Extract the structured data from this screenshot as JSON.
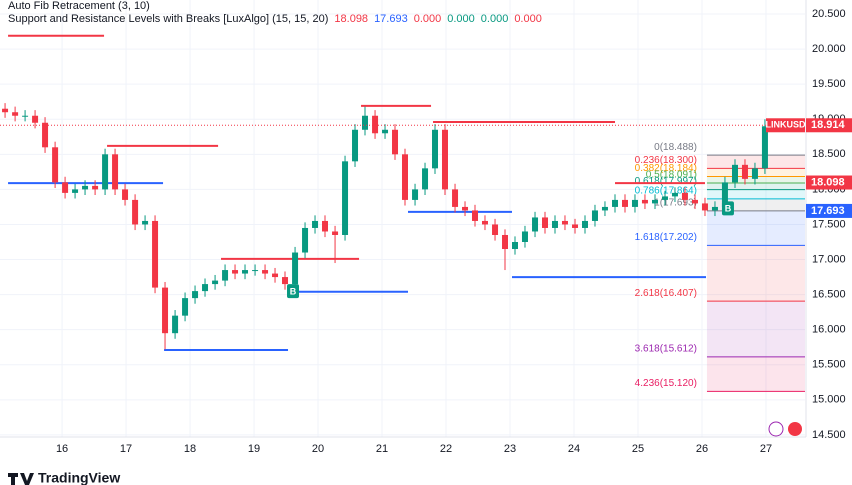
{
  "chart_data": {
    "type": "candlestick",
    "indicator_titles": [
      "Auto Fib Retracement (3, 10)",
      "Support and Resistance Levels with Breaks [LuxAlgo] (15, 15, 20)"
    ],
    "indicator_readout": [
      "18.098",
      "17.693",
      "0.000",
      "0.000",
      "0.000",
      "0.000"
    ],
    "indicator_readout_colors": [
      "#f23645",
      "#2962ff",
      "#f23645",
      "#089981",
      "#089981",
      "#f23645"
    ],
    "symbol": "LINKUSD",
    "last_price": 18.914,
    "price_tags": [
      {
        "value": 18.098,
        "color": "#f23645"
      },
      {
        "value": 17.693,
        "color": "#2962ff"
      }
    ],
    "up_color": "#089981",
    "down_color": "#f23645",
    "grid": true,
    "xlim": [
      15.03,
      27.61
    ],
    "xticks": [
      16,
      17,
      18,
      19,
      20,
      21,
      22,
      23,
      24,
      25,
      26,
      27
    ],
    "ylim": [
      14.47,
      20.7
    ],
    "yticks": [
      {
        "value": 14.5,
        "label": "14.500"
      },
      {
        "value": 15,
        "label": "15.000"
      },
      {
        "value": 15.5,
        "label": "15.500"
      },
      {
        "value": 16,
        "label": "16.000"
      },
      {
        "value": 16.5,
        "label": "16.500"
      },
      {
        "value": 17,
        "label": "17.000"
      },
      {
        "value": 17.5,
        "label": "17.500"
      },
      {
        "value": 18,
        "label": "18.000"
      },
      {
        "value": 18.5,
        "label": "18.500"
      },
      {
        "value": 19,
        "label": "19.000"
      },
      {
        "value": 19.5,
        "label": "19.500"
      },
      {
        "value": 20,
        "label": "20.000"
      },
      {
        "value": 20.5,
        "label": "20.500"
      }
    ],
    "x": [
      15.109,
      15.266,
      15.422,
      15.578,
      15.734,
      15.891,
      16.047,
      16.203,
      16.359,
      16.516,
      16.672,
      16.828,
      16.984,
      17.141,
      17.297,
      17.453,
      17.609,
      17.766,
      17.922,
      18.078,
      18.234,
      18.391,
      18.547,
      18.703,
      18.859,
      19.016,
      19.172,
      19.328,
      19.484,
      19.641,
      19.797,
      19.953,
      20.109,
      20.266,
      20.422,
      20.578,
      20.734,
      20.891,
      21.047,
      21.203,
      21.359,
      21.516,
      21.672,
      21.828,
      21.984,
      22.141,
      22.297,
      22.453,
      22.609,
      22.766,
      22.922,
      23.078,
      23.234,
      23.391,
      23.547,
      23.703,
      23.859,
      24.016,
      24.172,
      24.328,
      24.484,
      24.641,
      24.797,
      24.953,
      25.109,
      25.266,
      25.422,
      25.578,
      25.734,
      25.891,
      26.047,
      26.203,
      26.359,
      26.516,
      26.672,
      26.828,
      26.984
    ],
    "open": [
      19.15,
      19.1,
      19.05,
      19.05,
      18.95,
      18.6,
      18.1,
      17.95,
      18.0,
      18.05,
      18.0,
      18.5,
      18.0,
      17.85,
      17.5,
      17.55,
      16.6,
      15.95,
      16.2,
      16.45,
      16.55,
      16.65,
      16.7,
      16.85,
      16.8,
      16.85,
      16.85,
      16.8,
      16.75,
      16.65,
      17.1,
      17.45,
      17.55,
      17.4,
      17.35,
      18.4,
      18.85,
      19.05,
      18.8,
      18.85,
      18.5,
      17.85,
      18.0,
      18.3,
      18.85,
      18.0,
      17.75,
      17.7,
      17.55,
      17.5,
      17.35,
      17.15,
      17.25,
      17.4,
      17.6,
      17.45,
      17.55,
      17.5,
      17.45,
      17.55,
      17.7,
      17.75,
      17.85,
      17.75,
      17.85,
      17.8,
      17.85,
      17.9,
      17.95,
      17.85,
      17.8,
      17.7,
      17.75,
      18.1,
      18.35,
      18.15,
      18.3
    ],
    "high": [
      19.23,
      19.18,
      19.13,
      19.13,
      19.03,
      18.68,
      18.18,
      18.08,
      18.13,
      18.13,
      18.58,
      18.58,
      18.08,
      17.93,
      17.63,
      17.63,
      16.68,
      16.28,
      16.53,
      16.63,
      16.73,
      16.78,
      16.93,
      16.93,
      16.93,
      16.93,
      16.93,
      16.88,
      16.83,
      17.18,
      17.53,
      17.63,
      17.63,
      17.48,
      18.48,
      18.93,
      19.18,
      19.13,
      18.93,
      18.93,
      18.58,
      18.08,
      18.38,
      18.93,
      18.93,
      18.08,
      17.83,
      17.78,
      17.63,
      17.58,
      17.43,
      17.33,
      17.48,
      17.68,
      17.68,
      17.63,
      17.63,
      17.58,
      17.63,
      17.78,
      17.83,
      17.93,
      17.93,
      17.93,
      17.93,
      17.93,
      17.98,
      18.03,
      18.03,
      17.93,
      17.88,
      17.83,
      18.18,
      18.43,
      18.43,
      18.38,
      19.0
    ],
    "low": [
      19.02,
      18.97,
      18.97,
      18.87,
      18.52,
      18.02,
      17.87,
      17.87,
      17.92,
      17.92,
      17.92,
      17.92,
      17.77,
      17.42,
      17.42,
      16.52,
      15.72,
      15.87,
      16.12,
      16.37,
      16.47,
      16.57,
      16.62,
      16.72,
      16.72,
      16.77,
      16.72,
      16.67,
      16.57,
      16.57,
      17.02,
      17.37,
      17.32,
      16.95,
      17.27,
      18.32,
      18.77,
      18.72,
      18.72,
      18.42,
      17.77,
      17.77,
      17.92,
      18.22,
      17.92,
      17.67,
      17.62,
      17.47,
      17.42,
      17.27,
      16.85,
      17.07,
      17.17,
      17.32,
      17.37,
      17.37,
      17.42,
      17.37,
      17.37,
      17.47,
      17.62,
      17.67,
      17.67,
      17.67,
      17.72,
      17.72,
      17.77,
      17.82,
      17.77,
      17.72,
      17.62,
      17.62,
      17.67,
      18.02,
      18.07,
      18.07,
      18.22
    ],
    "close": [
      19.1,
      19.05,
      19.05,
      18.95,
      18.6,
      18.1,
      17.95,
      18.0,
      18.05,
      18.0,
      18.5,
      18.0,
      17.85,
      17.5,
      17.55,
      16.6,
      15.95,
      16.2,
      16.45,
      16.55,
      16.65,
      16.7,
      16.85,
      16.8,
      16.85,
      16.85,
      16.8,
      16.75,
      16.65,
      17.1,
      17.45,
      17.55,
      17.4,
      17.35,
      18.4,
      18.85,
      19.05,
      18.8,
      18.85,
      18.5,
      17.85,
      18.0,
      18.3,
      18.85,
      18.0,
      17.75,
      17.7,
      17.55,
      17.5,
      17.35,
      17.15,
      17.25,
      17.4,
      17.6,
      17.45,
      17.55,
      17.5,
      17.45,
      17.55,
      17.7,
      17.75,
      17.85,
      17.75,
      17.85,
      17.8,
      17.85,
      17.9,
      17.95,
      17.85,
      17.8,
      17.7,
      17.75,
      18.1,
      18.35,
      18.15,
      18.3,
      18.9
    ],
    "resistance_color": "#f23645",
    "support_color": "#2962ff",
    "resistance_lines": [
      {
        "price": 20.19,
        "x": [
          15.156,
          16.656
        ]
      },
      {
        "price": 18.62,
        "x": [
          16.703,
          18.438
        ]
      },
      {
        "price": 17.01,
        "x": [
          18.484,
          20.641
        ]
      },
      {
        "price": 19.19,
        "x": [
          20.672,
          21.766
        ]
      },
      {
        "price": 18.96,
        "x": [
          21.797,
          24.641
        ]
      },
      {
        "price": 18.09,
        "x": [
          24.641,
          26.047
        ]
      }
    ],
    "support_lines": [
      {
        "price": 18.09,
        "x": [
          15.156,
          17.578
        ]
      },
      {
        "price": 15.71,
        "x": [
          17.594,
          19.531
        ]
      },
      {
        "price": 16.54,
        "x": [
          19.594,
          21.406
        ]
      },
      {
        "price": 17.68,
        "x": [
          21.406,
          23.031
        ]
      },
      {
        "price": 16.75,
        "x": [
          23.031,
          26.063
        ]
      }
    ],
    "fib_start": 26.078,
    "fib_levels": [
      {
        "label": "0(18.488)",
        "price": 18.488,
        "color": "#787b86"
      },
      {
        "label": "0.236(18.300)",
        "price": 18.3,
        "color": "#f23645"
      },
      {
        "label": "0.382(18.184)",
        "price": 18.184,
        "color": "#ff9800"
      },
      {
        "label": "0.5(18.091)",
        "price": 18.091,
        "color": "#4caf50"
      },
      {
        "label": "0.618(17.997)",
        "price": 17.997,
        "color": "#089981"
      },
      {
        "label": "0.786(17.864)",
        "price": 17.864,
        "color": "#00bcd4"
      },
      {
        "label": "1(17.693)",
        "price": 17.693,
        "color": "#787b86"
      },
      {
        "label": "1.618(17.202)",
        "price": 17.202,
        "color": "#2962ff"
      },
      {
        "label": "2.618(16.407)",
        "price": 16.407,
        "color": "#f23645"
      },
      {
        "label": "3.618(15.612)",
        "price": 15.612,
        "color": "#9c27b0"
      },
      {
        "label": "4.236(15.120)",
        "price": 15.12,
        "color": "#e91e63"
      }
    ],
    "breakouts": [
      {
        "label": "B",
        "x": 19.609,
        "price": 16.55
      },
      {
        "label": "B",
        "x": 26.406,
        "price": 17.73
      }
    ],
    "brand": "TradingView"
  }
}
